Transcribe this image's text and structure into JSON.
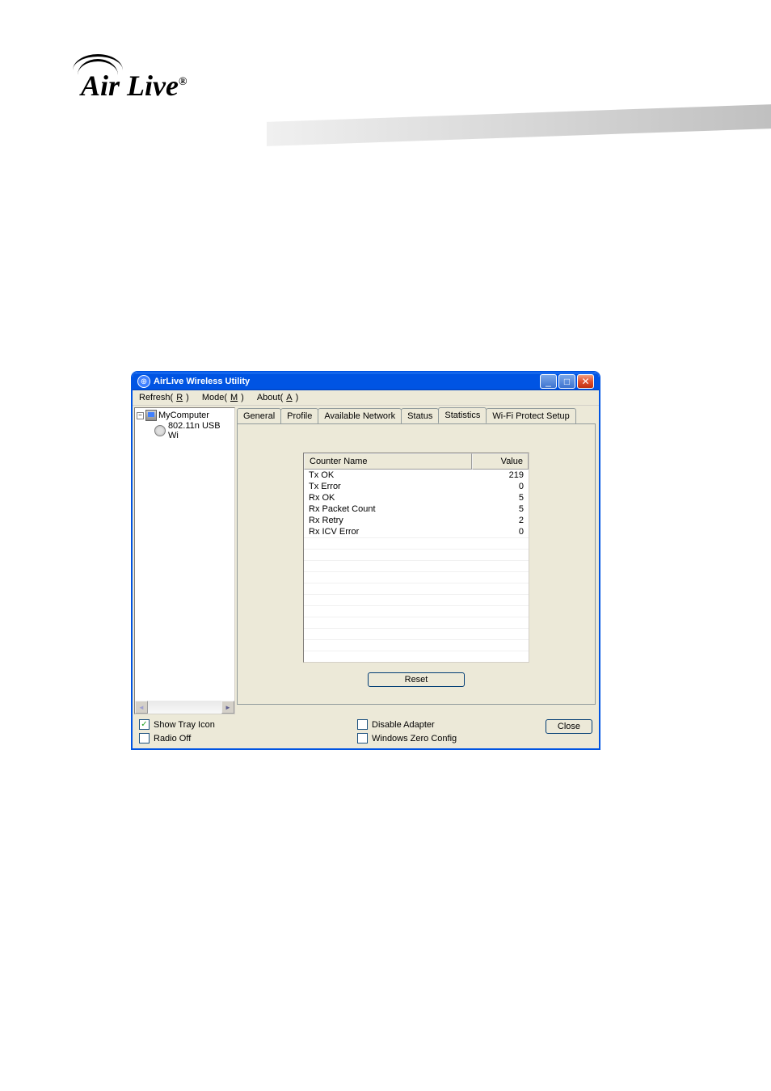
{
  "logo": {
    "text": "Air Live",
    "registered": "®"
  },
  "window": {
    "title": "AirLive Wireless Utility",
    "menu": {
      "refresh": "Refresh(R)",
      "mode": "Mode(M)",
      "about": "About(A)"
    },
    "tree": {
      "root": "MyComputer",
      "child": "802.11n USB Wi"
    },
    "tabs": {
      "general": "General",
      "profile": "Profile",
      "available_network": "Available Network",
      "status": "Status",
      "statistics": "Statistics",
      "wps": "Wi-Fi Protect Setup"
    },
    "stats": {
      "header_name": "Counter Name",
      "header_value": "Value",
      "rows": [
        {
          "name": "Tx OK",
          "value": "219"
        },
        {
          "name": "Tx Error",
          "value": "0"
        },
        {
          "name": "Rx OK",
          "value": "5"
        },
        {
          "name": "Rx Packet Count",
          "value": "5"
        },
        {
          "name": "Rx Retry",
          "value": "2"
        },
        {
          "name": "Rx ICV Error",
          "value": "0"
        }
      ],
      "reset": "Reset"
    },
    "bottom": {
      "show_tray": "Show Tray Icon",
      "radio_off": "Radio Off",
      "disable_adapter": "Disable Adapter",
      "windows_zero": "Windows Zero Config",
      "close": "Close"
    }
  }
}
